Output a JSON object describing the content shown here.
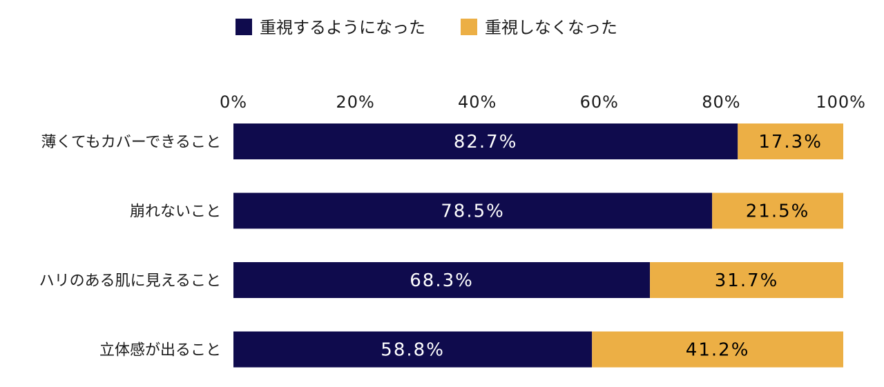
{
  "chart_data": {
    "type": "bar",
    "orientation": "horizontal",
    "stacked": true,
    "title": "",
    "xlabel": "",
    "ylabel": "",
    "xlim": [
      0,
      100
    ],
    "x_ticks": [
      "0%",
      "20%",
      "40%",
      "60%",
      "80%",
      "100%"
    ],
    "x_tick_values": [
      0,
      20,
      40,
      60,
      80,
      100
    ],
    "grid": false,
    "legend_position": "top",
    "categories": [
      "薄くてもカバーできること",
      "崩れないこと",
      "ハリのある肌に見えること",
      "立体感が出ること"
    ],
    "series": [
      {
        "name": "重視するようになった",
        "color": "#0f0b4d",
        "label_color": "#ffffff",
        "values": [
          82.7,
          78.5,
          68.3,
          58.8
        ],
        "labels": [
          "82.7%",
          "78.5%",
          "68.3%",
          "58.8%"
        ]
      },
      {
        "name": "重視しなくなった",
        "color": "#ecaf45",
        "label_color": "#000000",
        "values": [
          17.3,
          21.5,
          31.7,
          41.2
        ],
        "labels": [
          "17.3%",
          "21.5%",
          "31.7%",
          "41.2%"
        ]
      }
    ]
  }
}
